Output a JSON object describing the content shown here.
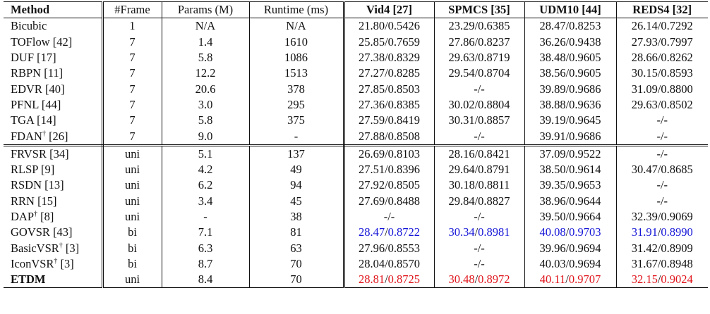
{
  "headers": {
    "method": "Method",
    "frame": "#Frame",
    "params": "Params (M)",
    "runtime": "Runtime (ms)",
    "vid4": "Vid4 [27]",
    "spmcs": "SPMCS [35]",
    "udm10": "UDM10 [44]",
    "reds4": "REDS4 [32]"
  },
  "groups": [
    {
      "rows": [
        {
          "method": "Bicubic",
          "sup": "",
          "ref": "",
          "frame": "1",
          "params": "N/A",
          "runtime": "N/A",
          "vid4": {
            "a": "21.80",
            "b": "0.5426",
            "color": ""
          },
          "spmcs": {
            "a": "23.29",
            "b": "0.6385",
            "color": ""
          },
          "udm10": {
            "a": "28.47",
            "b": "0.8253",
            "color": ""
          },
          "reds4": {
            "a": "26.14",
            "b": "0.7292",
            "color": ""
          }
        },
        {
          "method": "TOFlow",
          "sup": "",
          "ref": " [42]",
          "frame": "7",
          "params": "1.4",
          "runtime": "1610",
          "vid4": {
            "a": "25.85",
            "b": "0.7659",
            "color": ""
          },
          "spmcs": {
            "a": "27.86",
            "b": "0.8237",
            "color": ""
          },
          "udm10": {
            "a": "36.26",
            "b": "0.9438",
            "color": ""
          },
          "reds4": {
            "a": "27.93",
            "b": "0.7997",
            "color": ""
          }
        },
        {
          "method": "DUF",
          "sup": "",
          "ref": " [17]",
          "frame": "7",
          "params": "5.8",
          "runtime": "1086",
          "vid4": {
            "a": "27.38",
            "b": "0.8329",
            "color": ""
          },
          "spmcs": {
            "a": "29.63",
            "b": "0.8719",
            "color": ""
          },
          "udm10": {
            "a": "38.48",
            "b": "0.9605",
            "color": ""
          },
          "reds4": {
            "a": "28.66",
            "b": "0.8262",
            "color": ""
          }
        },
        {
          "method": "RBPN",
          "sup": "",
          "ref": " [11]",
          "frame": "7",
          "params": "12.2",
          "runtime": "1513",
          "vid4": {
            "a": "27.27",
            "b": "0.8285",
            "color": ""
          },
          "spmcs": {
            "a": "29.54",
            "b": "0.8704",
            "color": ""
          },
          "udm10": {
            "a": "38.56",
            "b": "0.9605",
            "color": ""
          },
          "reds4": {
            "a": "30.15",
            "b": "0.8593",
            "color": ""
          }
        },
        {
          "method": "EDVR",
          "sup": "",
          "ref": " [40]",
          "frame": "7",
          "params": "20.6",
          "runtime": "378",
          "vid4": {
            "a": "27.85",
            "b": "0.8503",
            "color": ""
          },
          "spmcs": {
            "text": "-/-"
          },
          "udm10": {
            "a": "39.89",
            "b": "0.9686",
            "color": ""
          },
          "reds4": {
            "a": "31.09",
            "b": "0.8800",
            "color": ""
          }
        },
        {
          "method": "PFNL",
          "sup": "",
          "ref": " [44]",
          "frame": "7",
          "params": "3.0",
          "runtime": "295",
          "vid4": {
            "a": "27.36",
            "b": "0.8385",
            "color": ""
          },
          "spmcs": {
            "a": "30.02",
            "b": "0.8804",
            "color": ""
          },
          "udm10": {
            "a": "38.88",
            "b": "0.9636",
            "color": ""
          },
          "reds4": {
            "a": "29.63",
            "b": "0.8502",
            "color": ""
          }
        },
        {
          "method": "TGA",
          "sup": "",
          "ref": " [14]",
          "frame": "7",
          "params": "5.8",
          "runtime": "375",
          "vid4": {
            "a": "27.59",
            "b": "0.8419",
            "color": ""
          },
          "spmcs": {
            "a": "30.31",
            "b": "0.8857",
            "color": ""
          },
          "udm10": {
            "a": "39.19",
            "b": "0.9645",
            "color": ""
          },
          "reds4": {
            "text": "-/-"
          }
        },
        {
          "method": "FDAN",
          "sup": "†",
          "ref": " [26]",
          "frame": "7",
          "params": "9.0",
          "runtime": "-",
          "vid4": {
            "a": "27.88",
            "b": "0.8508",
            "color": ""
          },
          "spmcs": {
            "text": "-/-"
          },
          "udm10": {
            "a": "39.91",
            "b": "0.9686",
            "color": ""
          },
          "reds4": {
            "text": "-/-"
          }
        }
      ]
    },
    {
      "rows": [
        {
          "method": "FRVSR",
          "sup": "",
          "ref": " [34]",
          "frame": "uni",
          "params": "5.1",
          "runtime": "137",
          "vid4": {
            "a": "26.69",
            "b": "0.8103",
            "color": ""
          },
          "spmcs": {
            "a": "28.16",
            "b": "0.8421",
            "color": ""
          },
          "udm10": {
            "a": "37.09",
            "b": "0.9522",
            "color": ""
          },
          "reds4": {
            "text": "-/-"
          }
        },
        {
          "method": "RLSP",
          "sup": "",
          "ref": " [9]",
          "frame": "uni",
          "params": "4.2",
          "runtime": "49",
          "vid4": {
            "a": "27.51",
            "b": "0.8396",
            "color": ""
          },
          "spmcs": {
            "a": "29.64",
            "b": "0.8791",
            "color": ""
          },
          "udm10": {
            "a": "38.50",
            "b": "0.9614",
            "color": ""
          },
          "reds4": {
            "a": "30.47",
            "b": "0.8685",
            "color": ""
          }
        },
        {
          "method": "RSDN",
          "sup": "",
          "ref": " [13]",
          "frame": "uni",
          "params": "6.2",
          "runtime": "94",
          "vid4": {
            "a": "27.92",
            "b": "0.8505",
            "color": ""
          },
          "spmcs": {
            "a": "30.18",
            "b": "0.8811",
            "color": ""
          },
          "udm10": {
            "a": "39.35",
            "b": "0.9653",
            "color": ""
          },
          "reds4": {
            "text": "-/-"
          }
        },
        {
          "method": "RRN",
          "sup": "",
          "ref": " [15]",
          "frame": "uni",
          "params": "3.4",
          "runtime": "45",
          "vid4": {
            "a": "27.69",
            "b": "0.8488",
            "color": ""
          },
          "spmcs": {
            "a": "29.84",
            "b": "0.8827",
            "color": ""
          },
          "udm10": {
            "a": "38.96",
            "b": "0.9644",
            "color": ""
          },
          "reds4": {
            "text": "-/-"
          }
        },
        {
          "method": "DAP",
          "sup": "†",
          "ref": " [8]",
          "frame": "uni",
          "params": "-",
          "runtime": "38",
          "vid4": {
            "text": "-/-"
          },
          "spmcs": {
            "text": "-/-"
          },
          "udm10": {
            "a": "39.50",
            "b": "0.9664",
            "color": ""
          },
          "reds4": {
            "a": "32.39",
            "b": "0.9069",
            "color": ""
          }
        },
        {
          "method": "GOVSR",
          "sup": "",
          "ref": " [43]",
          "frame": "bi",
          "params": "7.1",
          "runtime": "81",
          "vid4": {
            "a": "28.47",
            "b": "0.8722",
            "color": "blue"
          },
          "spmcs": {
            "a": "30.34",
            "b": "0.8981",
            "color": "blue"
          },
          "udm10": {
            "a": "40.08",
            "b": "0.9703",
            "color": "blue"
          },
          "reds4": {
            "a": "31.91",
            "b": "0.8990",
            "color": "blue"
          }
        },
        {
          "method": "BasicVSR",
          "sup": "†",
          "ref": " [3]",
          "frame": "bi",
          "params": "6.3",
          "runtime": "63",
          "vid4": {
            "a": "27.96",
            "b": "0.8553",
            "color": ""
          },
          "spmcs": {
            "text": "-/-"
          },
          "udm10": {
            "a": "39.96",
            "b": "0.9694",
            "color": ""
          },
          "reds4": {
            "a": "31.42",
            "b": "0.8909",
            "color": ""
          }
        },
        {
          "method": "IconVSR",
          "sup": "†",
          "ref": " [3]",
          "frame": "bi",
          "params": "8.7",
          "runtime": "70",
          "vid4": {
            "a": "28.04",
            "b": "0.8570",
            "color": ""
          },
          "spmcs": {
            "text": "-/-"
          },
          "udm10": {
            "a": "40.03",
            "b": "0.9694",
            "color": ""
          },
          "reds4": {
            "a": "31.67",
            "b": "0.8948",
            "color": ""
          }
        },
        {
          "method": "ETDM",
          "sup": "",
          "ref": "",
          "bold": true,
          "frame": "uni",
          "params": "8.4",
          "runtime": "70",
          "vid4": {
            "a": "28.81",
            "b": "0.8725",
            "color": "red"
          },
          "spmcs": {
            "a": "30.48",
            "b": "0.8972",
            "color": "red"
          },
          "udm10": {
            "a": "40.11",
            "b": "0.9707",
            "color": "red"
          },
          "reds4": {
            "a": "32.15",
            "b": "0.9024",
            "color": "red"
          }
        }
      ]
    }
  ],
  "colors": {
    "blue": "#1515d8",
    "red": "#e0151c"
  }
}
